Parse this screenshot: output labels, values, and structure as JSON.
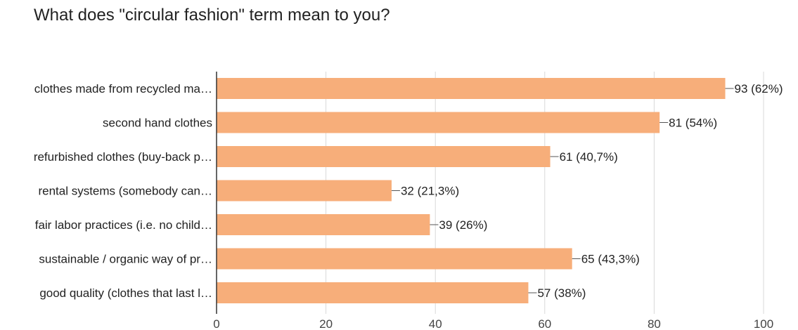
{
  "chart_data": {
    "type": "bar",
    "orientation": "horizontal",
    "title": "What does \"circular fashion\" term mean to you?",
    "categories": [
      "clothes made from recycled ma…",
      "second hand clothes",
      "refurbished clothes (buy-back p…",
      "rental systems (somebody can…",
      "fair labor practices (i.e. no child…",
      "sustainable / organic way of pr…",
      "good quality (clothes that last l…"
    ],
    "values": [
      93,
      81,
      61,
      32,
      39,
      65,
      57
    ],
    "data_labels": [
      "93 (62%)",
      "81 (54%)",
      "61 (40,7%)",
      "32 (21,3%)",
      "39 (26%)",
      "65 (43,3%)",
      "57 (38%)"
    ],
    "xlim": [
      0,
      100
    ],
    "xticks": [
      0,
      20,
      40,
      60,
      80,
      100
    ],
    "xlabel": "",
    "ylabel": "",
    "grid": true,
    "legend": "none",
    "colors": {
      "bar": "#f7ae7a",
      "grid": "#d9d9d9",
      "axis": "#333333"
    }
  }
}
